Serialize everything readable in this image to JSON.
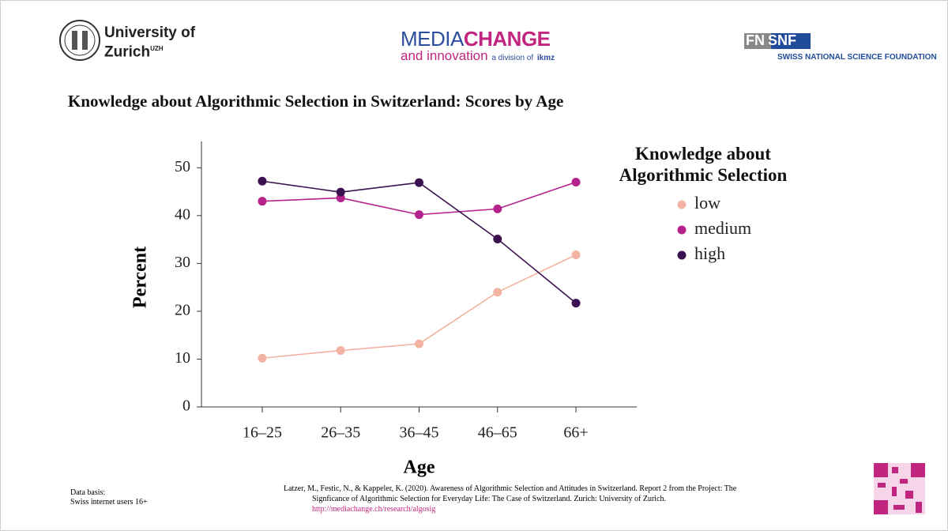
{
  "header": {
    "university": "University of",
    "university_2": "Zurich",
    "university_sup": "UZH",
    "media": "MEDIA",
    "change": "CHANGE",
    "innovation": "and innovation",
    "division": "a division of",
    "ikmz": "ikmz",
    "fn": "FN",
    "snf": "SNF",
    "snsf": "SWISS NATIONAL SCIENCE FOUNDATION"
  },
  "footer": {
    "data_basis": "Data basis:",
    "data_basis_2": "Swiss internet users 16+",
    "citation": "Latzer, M., Festic, N., & Kappeler, K. (2020). Awareness of Algorithmic Selection and Attitudes in Switzerland. Report 2 from the Project: The Signficance of Algorithmic Selection for Everyday Life: The Case of Switzerland. Zurich: University of Zurich.",
    "link": "http://mediachange.ch/research/algosig"
  },
  "chart_data": {
    "type": "line",
    "title": "Knowledge about Algorithmic Selection in Switzerland: Scores by Age",
    "x_label": "Age",
    "y_label": "Percent",
    "legend_title": "Knowledge about Algorithmic Selection",
    "categories": [
      "16–25",
      "26–35",
      "36–45",
      "46–65",
      "66+"
    ],
    "series": [
      {
        "name": "low",
        "color": "#f2b3a3",
        "values": [
          10.2,
          11.8,
          13.2,
          24.0,
          31.8
        ]
      },
      {
        "name": "medium",
        "color": "#b5228b",
        "values": [
          43.0,
          43.7,
          40.2,
          41.4,
          47.0
        ]
      },
      {
        "name": "high",
        "color": "#3b1150",
        "values": [
          47.2,
          44.9,
          46.9,
          35.1,
          21.7
        ]
      }
    ],
    "ylim": [
      0,
      55.5
    ],
    "yticks": [
      0,
      10,
      20,
      30,
      40,
      50
    ],
    "grid": false,
    "legend": "right"
  }
}
